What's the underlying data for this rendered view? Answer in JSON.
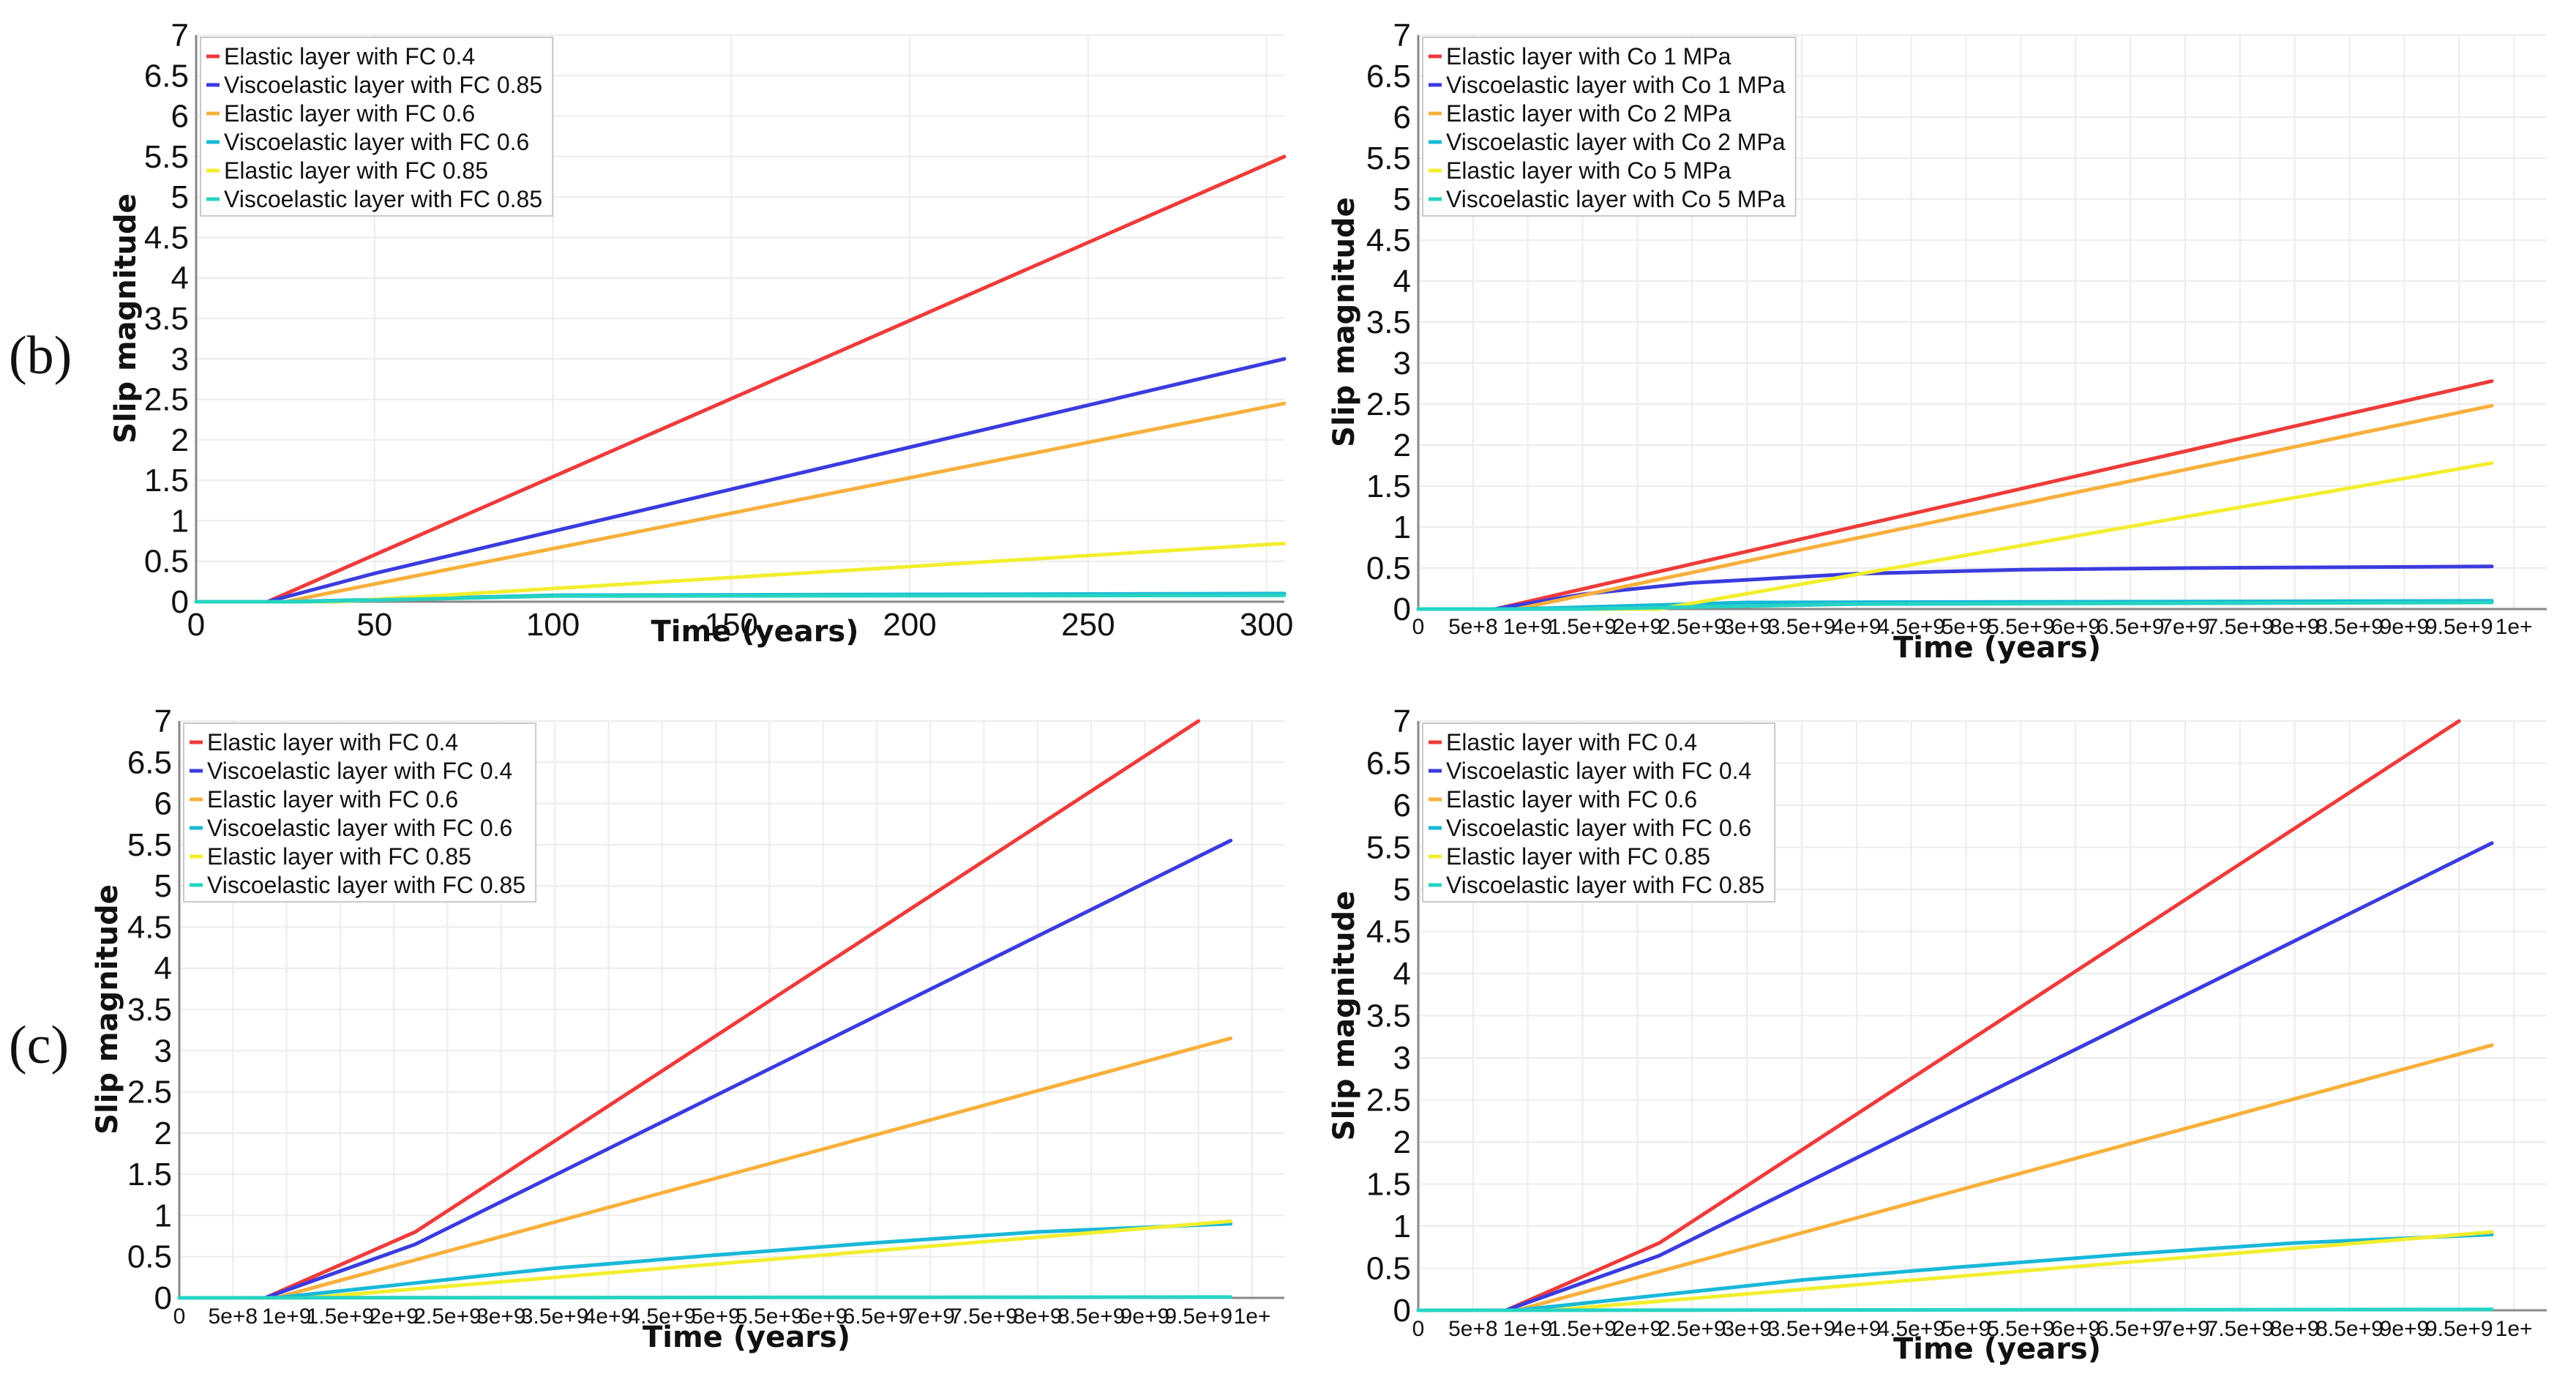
{
  "colors": {
    "red": "#ee3b3b",
    "blue": "#3b3bdf",
    "orange": "#f7b03c",
    "cyan": "#19b8d8",
    "yellow": "#f2ee2e",
    "teal": "#26d3c3"
  },
  "panel_labels": [
    "(b)",
    "(c)"
  ],
  "chart_data": [
    {
      "type": "line",
      "panel": "top-left",
      "title": "",
      "xlabel": "Time (years)",
      "ylabel": "Slip magnitude",
      "xlim": [
        0,
        305
      ],
      "ylim": [
        0,
        7
      ],
      "xticks": [
        0,
        50,
        100,
        150,
        200,
        250,
        300
      ],
      "xtick_labels": [
        "0",
        "50",
        "100",
        "150",
        "200",
        "250",
        "300"
      ],
      "yticks": [
        0,
        0.5,
        1,
        1.5,
        2,
        2.5,
        3,
        3.5,
        4,
        4.5,
        5,
        5.5,
        6,
        6.5,
        7
      ],
      "ytick_labels": [
        "0",
        "0.5",
        "1",
        "1.5",
        "2",
        "2.5",
        "3",
        "3.5",
        "4",
        "4.5",
        "5",
        "5.5",
        "6",
        "6.5",
        "7"
      ],
      "legend": "top-left",
      "series": [
        {
          "name": "Elastic layer with FC 0.4",
          "color": "red",
          "x": [
            0,
            20,
            305
          ],
          "y": [
            0,
            0,
            5.5
          ]
        },
        {
          "name": "Viscoelastic layer with FC 0.85",
          "color": "blue",
          "x": [
            0,
            20,
            50,
            305
          ],
          "y": [
            0,
            0,
            0.35,
            3.0
          ]
        },
        {
          "name": "Elastic layer with FC 0.6",
          "color": "orange",
          "x": [
            0,
            25,
            305
          ],
          "y": [
            0,
            0,
            2.45
          ]
        },
        {
          "name": "Viscoelastic layer with FC 0.6",
          "color": "cyan",
          "x": [
            0,
            25,
            100,
            305
          ],
          "y": [
            0,
            0,
            0.08,
            0.1
          ]
        },
        {
          "name": "Elastic layer with FC 0.85",
          "color": "yellow",
          "x": [
            0,
            40,
            305
          ],
          "y": [
            0,
            0,
            0.72
          ]
        },
        {
          "name": "Viscoelastic layer with FC 0.85",
          "color": "teal",
          "x": [
            0,
            30,
            100,
            305
          ],
          "y": [
            0,
            0,
            0.07,
            0.08
          ]
        }
      ]
    },
    {
      "type": "line",
      "panel": "top-right",
      "title": "",
      "xlabel": "Time (years)",
      "ylabel": "Slip magnitude",
      "xlim": [
        0,
        10.3
      ],
      "ylim": [
        0,
        7
      ],
      "xticks": [
        0,
        0.5,
        1,
        1.5,
        2,
        2.5,
        3,
        3.5,
        4,
        4.5,
        5,
        5.5,
        6,
        6.5,
        7,
        7.5,
        8,
        8.5,
        9,
        9.5,
        10
      ],
      "xtick_labels": [
        "0",
        "5e+8",
        "1e+9",
        "1.5e+9",
        "2e+9",
        "2.5e+9",
        "3e+9",
        "3.5e+9",
        "4e+9",
        "4.5e+9",
        "5e+9",
        "5.5e+9",
        "6e+9",
        "6.5e+9",
        "7e+9",
        "7.5e+9",
        "8e+9",
        "8.5e+9",
        "9e+9",
        "9.5e+9",
        "1e+"
      ],
      "yticks": [
        0,
        0.5,
        1,
        1.5,
        2,
        2.5,
        3,
        3.5,
        4,
        4.5,
        5,
        5.5,
        6,
        6.5,
        7
      ],
      "ytick_labels": [
        "0",
        "0.5",
        "1",
        "1.5",
        "2",
        "2.5",
        "3",
        "3.5",
        "4",
        "4.5",
        "5",
        "5.5",
        "6",
        "6.5",
        "7"
      ],
      "legend": "top-left",
      "series": [
        {
          "name": "Elastic layer with Co 1 MPa",
          "color": "red",
          "x": [
            0,
            0.7,
            9.8
          ],
          "y": [
            0,
            0,
            2.78
          ]
        },
        {
          "name": "Viscoelastic layer with Co 1 MPa",
          "color": "blue",
          "x": [
            0,
            0.7,
            1.5,
            2.5,
            4,
            5.5,
            7,
            9.8
          ],
          "y": [
            0,
            0,
            0.18,
            0.32,
            0.43,
            0.48,
            0.5,
            0.52
          ]
        },
        {
          "name": "Elastic layer with Co 2 MPa",
          "color": "orange",
          "x": [
            0,
            0.9,
            9.8
          ],
          "y": [
            0,
            0,
            2.48
          ]
        },
        {
          "name": "Viscoelastic layer with Co 2 MPa",
          "color": "cyan",
          "x": [
            0,
            0.9,
            3,
            9.8
          ],
          "y": [
            0,
            0,
            0.08,
            0.1
          ]
        },
        {
          "name": "Elastic layer with Co 5 MPa",
          "color": "yellow",
          "x": [
            0,
            2.2,
            9.8
          ],
          "y": [
            0,
            0,
            1.78
          ]
        },
        {
          "name": "Viscoelastic layer with Co 5 MPa",
          "color": "teal",
          "x": [
            0,
            1.5,
            4,
            9.8
          ],
          "y": [
            0,
            0,
            0.06,
            0.08
          ]
        }
      ]
    },
    {
      "type": "line",
      "panel": "bottom-left",
      "title": "",
      "xlabel": "Time (years)",
      "ylabel": "Slip magnitude",
      "xlim": [
        0,
        10.3
      ],
      "ylim": [
        0,
        7
      ],
      "xticks": [
        0,
        0.5,
        1,
        1.5,
        2,
        2.5,
        3,
        3.5,
        4,
        4.5,
        5,
        5.5,
        6,
        6.5,
        7,
        7.5,
        8,
        8.5,
        9,
        9.5,
        10
      ],
      "xtick_labels": [
        "0",
        "5e+8",
        "1e+9",
        "1.5e+9",
        "2e+9",
        "2.5e+9",
        "3e+9",
        "3.5e+9",
        "4e+9",
        "4.5e+9",
        "5e+9",
        "5.5e+9",
        "6e+9",
        "6.5e+9",
        "7e+9",
        "7.5e+9",
        "8e+9",
        "8.5e+9",
        "9e+9",
        "9.5e+9",
        "1e+"
      ],
      "yticks": [
        0,
        0.5,
        1,
        1.5,
        2,
        2.5,
        3,
        3.5,
        4,
        4.5,
        5,
        5.5,
        6,
        6.5,
        7
      ],
      "ytick_labels": [
        "0",
        "0.5",
        "1",
        "1.5",
        "2",
        "2.5",
        "3",
        "3.5",
        "4",
        "4.5",
        "5",
        "5.5",
        "6",
        "6.5",
        "7"
      ],
      "legend": "top-left",
      "series": [
        {
          "name": "Elastic layer with FC 0.4",
          "color": "red",
          "x": [
            0,
            0.8,
            2.2,
            9.5
          ],
          "y": [
            0,
            0,
            0.8,
            7.0
          ]
        },
        {
          "name": "Viscoelastic layer with FC 0.4",
          "color": "blue",
          "x": [
            0,
            0.8,
            2.2,
            9.8
          ],
          "y": [
            0,
            0,
            0.65,
            5.55
          ]
        },
        {
          "name": "Elastic layer with FC 0.6",
          "color": "orange",
          "x": [
            0,
            0.9,
            9.8
          ],
          "y": [
            0,
            0,
            3.15
          ]
        },
        {
          "name": "Viscoelastic layer with FC 0.6",
          "color": "cyan",
          "x": [
            0,
            0.9,
            2.2,
            3.5,
            5,
            6.5,
            8,
            9.8
          ],
          "y": [
            0,
            0,
            0.18,
            0.36,
            0.52,
            0.67,
            0.8,
            0.9
          ]
        },
        {
          "name": "Elastic layer with FC 0.85",
          "color": "yellow",
          "x": [
            0,
            1.2,
            9.8
          ],
          "y": [
            0,
            0,
            0.93
          ]
        },
        {
          "name": "Viscoelastic layer with FC 0.85",
          "color": "teal",
          "x": [
            0,
            9.8
          ],
          "y": [
            0,
            0.01
          ]
        }
      ]
    },
    {
      "type": "line",
      "panel": "bottom-right",
      "title": "",
      "xlabel": "Time (years)",
      "ylabel": "Slip magnitude",
      "xlim": [
        0,
        10.3
      ],
      "ylim": [
        0,
        7
      ],
      "xticks": [
        0,
        0.5,
        1,
        1.5,
        2,
        2.5,
        3,
        3.5,
        4,
        4.5,
        5,
        5.5,
        6,
        6.5,
        7,
        7.5,
        8,
        8.5,
        9,
        9.5,
        10
      ],
      "xtick_labels": [
        "0",
        "5e+8",
        "1e+9",
        "1.5e+9",
        "2e+9",
        "2.5e+9",
        "3e+9",
        "3.5e+9",
        "4e+9",
        "4.5e+9",
        "5e+9",
        "5.5e+9",
        "6e+9",
        "6.5e+9",
        "7e+9",
        "7.5e+9",
        "8e+9",
        "8.5e+9",
        "9e+9",
        "9.5e+9",
        "1e+"
      ],
      "yticks": [
        0,
        0.5,
        1,
        1.5,
        2,
        2.5,
        3,
        3.5,
        4,
        4.5,
        5,
        5.5,
        6,
        6.5,
        7
      ],
      "ytick_labels": [
        "0",
        "0.5",
        "1",
        "1.5",
        "2",
        "2.5",
        "3",
        "3.5",
        "4",
        "4.5",
        "5",
        "5.5",
        "6",
        "6.5",
        "7"
      ],
      "legend": "top-left",
      "series": [
        {
          "name": "Elastic layer with FC 0.4",
          "color": "red",
          "x": [
            0,
            0.8,
            2.2,
            9.5
          ],
          "y": [
            0,
            0,
            0.8,
            7.0
          ]
        },
        {
          "name": "Viscoelastic layer with FC 0.4",
          "color": "blue",
          "x": [
            0,
            0.8,
            2.2,
            9.8
          ],
          "y": [
            0,
            0,
            0.65,
            5.55
          ]
        },
        {
          "name": "Elastic layer with FC 0.6",
          "color": "orange",
          "x": [
            0,
            0.9,
            9.8
          ],
          "y": [
            0,
            0,
            3.15
          ]
        },
        {
          "name": "Viscoelastic layer with FC 0.6",
          "color": "cyan",
          "x": [
            0,
            0.9,
            2.2,
            3.5,
            5,
            6.5,
            8,
            9.8
          ],
          "y": [
            0,
            0,
            0.18,
            0.36,
            0.52,
            0.67,
            0.8,
            0.9
          ]
        },
        {
          "name": "Elastic layer with FC 0.85",
          "color": "yellow",
          "x": [
            0,
            1.2,
            9.8
          ],
          "y": [
            0,
            0,
            0.93
          ]
        },
        {
          "name": "Viscoelastic layer with FC 0.85",
          "color": "teal",
          "x": [
            0,
            9.8
          ],
          "y": [
            0,
            0.01
          ]
        }
      ]
    }
  ]
}
